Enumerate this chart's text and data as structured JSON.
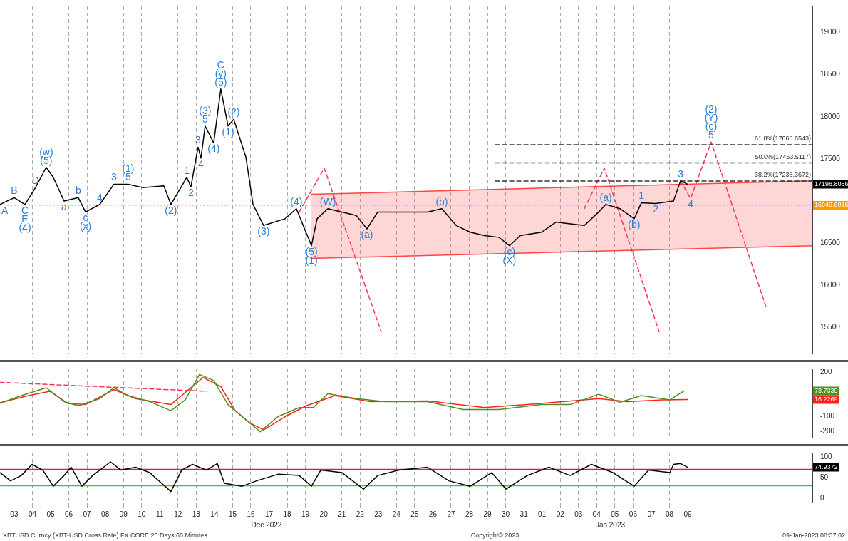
{
  "chart_data": [
    {
      "type": "line",
      "xlim": [
        "2022-12-02T17:17",
        "2023-01-16T08:24"
      ],
      "xticks": [
        "2022-12-03T12:00",
        "2022-12-04T12:00",
        "2022-12-05T12:00",
        "2022-12-06T12:00",
        "2022-12-07T12:00",
        "2022-12-08T12:00",
        "2022-12-09T12:00",
        "2022-12-10T12:00",
        "2022-12-11T12:00",
        "2022-12-12T12:00",
        "2022-12-13T12:00",
        "2022-12-14T12:00",
        "2022-12-15T12:00",
        "2022-12-16T12:00",
        "2022-12-17T12:00",
        "2022-12-18T12:00",
        "2022-12-19T12:00",
        "2022-12-20T12:00",
        "2022-12-21T12:00",
        "2022-12-22T12:00",
        "2022-12-23T12:00",
        "2022-12-24T12:00",
        "2022-12-25T12:00",
        "2022-12-26T12:00",
        "2022-12-27T12:00",
        "2022-12-28T12:00",
        "2022-12-29T12:00",
        "2022-12-30T12:00",
        "2022-12-31T12:00",
        "2023-01-01T12:00",
        "2023-01-02T12:00",
        "2023-01-03T12:00",
        "2023-01-04T12:00",
        "2023-01-05T12:00",
        "2023-01-06T12:00",
        "2023-01-07T12:00",
        "2023-01-08T12:00",
        "2023-01-09T12:00"
      ],
      "ylim": [
        15190,
        19310
      ],
      "yticks": [
        15500,
        16000,
        16500,
        17500,
        18000,
        18500,
        19000
      ],
      "tick_labels": "y",
      "grid": "x",
      "legend": false,
      "marker": "none",
      "series": [
        {
          "color": "#000000",
          "line_style": "solid",
          "x": [
            "2022-12-02T17:17",
            "2022-12-03T12:00",
            "2022-12-04T02:10",
            "2022-12-04T16:05",
            "2022-12-05T06:14",
            "2022-12-05T15:36",
            "2022-12-06T05:46",
            "2022-12-07T00:29",
            "2022-12-07T10:05",
            "2022-12-08T04:48",
            "2022-12-08T23:31",
            "2022-12-09T18:14",
            "2022-12-10T13:12",
            "2022-12-11T17:17",
            "2022-12-12T02:38",
            "2022-12-12T23:31",
            "2022-12-13T05:02",
            "2022-12-13T14:24",
            "2022-12-13T18:14",
            "2022-12-13T23:46",
            "2022-12-14T11:02",
            "2022-12-14T20:24",
            "2022-12-15T06:00",
            "2022-12-15T13:26",
            "2022-12-16T05:31",
            "2022-12-16T14:53",
            "2022-12-17T04:48",
            "2022-12-18T09:07",
            "2022-12-19T00:00",
            "2022-12-19T19:55",
            "2022-12-20T03:22",
            "2022-12-20T17:31",
            "2022-12-21T12:14",
            "2022-12-22T06:58",
            "2022-12-22T21:07",
            "2022-12-23T11:17",
            "2022-12-24T15:22",
            "2022-12-26T05:02",
            "2022-12-26T23:46",
            "2022-12-27T18:43",
            "2022-12-28T13:26",
            "2022-12-29T08:10",
            "2022-12-30T02:53",
            "2022-12-30T17:02",
            "2022-12-31T07:12",
            "2023-01-01T11:17",
            "2023-01-02T06:14",
            "2023-01-03T00:58",
            "2023-01-03T19:41",
            "2023-01-04T14:38",
            "2023-01-05T00:00",
            "2023-01-05T18:43",
            "2023-01-06T13:26",
            "2023-01-06T23:02",
            "2023-01-07T17:46",
            "2023-01-08T17:17",
            "2023-01-09T02:38",
            "2023-01-09T12:00"
          ],
          "values": [
            16960,
            17040,
            16960,
            17160,
            17400,
            17280,
            17000,
            17040,
            16870,
            16960,
            17200,
            17200,
            17160,
            17180,
            16960,
            17280,
            17170,
            17640,
            17510,
            17890,
            17690,
            18330,
            17890,
            17970,
            17520,
            16960,
            16710,
            16790,
            16910,
            16470,
            16790,
            16910,
            16870,
            16830,
            16670,
            16870,
            16870,
            16870,
            16910,
            16710,
            16630,
            16590,
            16570,
            16470,
            16590,
            16630,
            16750,
            16730,
            16710,
            16870,
            16960,
            16910,
            16790,
            16980,
            16970,
            17000,
            17240,
            17198.8086
          ]
        },
        {
          "color": "#ff4444",
          "line_style": "solid",
          "x": [
            "2022-12-19T19:55",
            "2023-01-16T08:24"
          ],
          "values": [
            null,
            null
          ],
          "lower": [
            16320,
            16470
          ],
          "upper": [
            17080,
            17240
          ]
        },
        {
          "color": "#333333",
          "line_style": "dashed",
          "x": [
            "2022-12-29T22:19",
            "2023-01-16T08:24"
          ],
          "values": [
            17238.3672,
            17238.3672
          ]
        },
        {
          "color": "#333333",
          "line_style": "dashed",
          "x": [
            "2022-12-29T22:19",
            "2023-01-16T08:24"
          ],
          "values": [
            17453.5117,
            17453.5117
          ]
        },
        {
          "color": "#333333",
          "line_style": "dashed",
          "x": [
            "2022-12-29T22:19",
            "2023-01-16T08:24"
          ],
          "values": [
            17668.6543,
            17668.6543
          ]
        },
        {
          "color": "#ff3355",
          "line_style": "dashed",
          "x": [
            "2022-12-19T03:50",
            "2022-12-20T12:43",
            "2022-12-23T15:50"
          ],
          "values": [
            16870,
            17390,
            15450
          ]
        },
        {
          "color": "#ff3355",
          "line_style": "dashed",
          "x": [
            "2023-01-03T19:41",
            "2023-01-04T22:05",
            "2023-01-07T22:19"
          ],
          "values": [
            16910,
            17390,
            15450
          ]
        },
        {
          "color": "#ff3355",
          "line_style": "dashed",
          "x": [
            "2023-01-09T02:38",
            "2023-01-09T15:50",
            "2023-01-10T18:58",
            "2023-01-13T19:26"
          ],
          "values": [
            17240,
            17030,
            17700,
            15740
          ]
        }
      ],
      "ref_lines": [
        {
          "axis": "y",
          "value": 16949.6016,
          "label": "16949.6016",
          "color": "#ff9900",
          "line_style": "dotted"
        }
      ],
      "annotations": [
        {
          "text": "A",
          "x": "2022-12-02T17:17",
          "y": 16960
        },
        {
          "text": "B",
          "x": "2022-12-03T12:00",
          "y": 17040
        },
        {
          "text": "C",
          "x": "2022-12-04T02:10",
          "y": 16960
        },
        {
          "text": "E",
          "x": "2022-12-04T02:10",
          "y": 16960
        },
        {
          "text": "(4)",
          "x": "2022-12-04T02:10",
          "y": 16960
        },
        {
          "text": "D",
          "x": "2022-12-04T16:05",
          "y": 17160
        },
        {
          "text": "(5)",
          "x": "2022-12-05T06:14",
          "y": 17400
        },
        {
          "text": "(w)",
          "x": "2022-12-05T06:14",
          "y": 17400
        },
        {
          "text": "a",
          "x": "2022-12-06T05:46",
          "y": 17000
        },
        {
          "text": "b",
          "x": "2022-12-07T00:29",
          "y": 17040
        },
        {
          "text": "c",
          "x": "2022-12-07T10:05",
          "y": 16870
        },
        {
          "text": "(x)",
          "x": "2022-12-07T10:05",
          "y": 16870
        },
        {
          "text": "4",
          "x": "2022-12-08T04:48",
          "y": 16960
        },
        {
          "text": "3",
          "x": "2022-12-08T23:31",
          "y": 17200
        },
        {
          "text": "5",
          "x": "2022-12-09T18:14",
          "y": 17200
        },
        {
          "text": "(1)",
          "x": "2022-12-09T18:14",
          "y": 17200
        },
        {
          "text": "(2)",
          "x": "2022-12-12T02:38",
          "y": 16960
        },
        {
          "text": "1",
          "x": "2022-12-12T23:31",
          "y": 17280
        },
        {
          "text": "2",
          "x": "2022-12-13T05:02",
          "y": 17170
        },
        {
          "text": "3",
          "x": "2022-12-13T14:24",
          "y": 17640
        },
        {
          "text": "4",
          "x": "2022-12-13T18:14",
          "y": 17510
        },
        {
          "text": "5",
          "x": "2022-12-13T23:46",
          "y": 17890
        },
        {
          "text": "(3)",
          "x": "2022-12-13T23:46",
          "y": 17890
        },
        {
          "text": "(4)",
          "x": "2022-12-14T11:02",
          "y": 17690
        },
        {
          "text": "(5)",
          "x": "2022-12-14T20:24",
          "y": 18330
        },
        {
          "text": "(y)",
          "x": "2022-12-14T20:24",
          "y": 18330
        },
        {
          "text": "C",
          "x": "2022-12-14T20:24",
          "y": 18330
        },
        {
          "text": "(1)",
          "x": "2022-12-15T06:00",
          "y": 17890
        },
        {
          "text": "(2)",
          "x": "2022-12-15T13:26",
          "y": 17970
        },
        {
          "text": "(3)",
          "x": "2022-12-17T04:48",
          "y": 16710
        },
        {
          "text": "(4)",
          "x": "2022-12-19T00:00",
          "y": 16910
        },
        {
          "text": "(5)",
          "x": "2022-12-19T19:55",
          "y": 16470
        },
        {
          "text": "(1)",
          "x": "2022-12-19T19:55",
          "y": 16470
        },
        {
          "text": "(W)",
          "x": "2022-12-20T17:31",
          "y": 16910
        },
        {
          "text": "(a)",
          "x": "2022-12-22T21:07",
          "y": 16670
        },
        {
          "text": "(b)",
          "x": "2022-12-26T23:46",
          "y": 16910
        },
        {
          "text": "(c)",
          "x": "2022-12-30T17:02",
          "y": 16470
        },
        {
          "text": "(X)",
          "x": "2022-12-30T17:02",
          "y": 16470
        },
        {
          "text": "(a)",
          "x": "2023-01-05T00:00",
          "y": 16960
        },
        {
          "text": "(b)",
          "x": "2023-01-06T13:26",
          "y": 16790
        },
        {
          "text": "1",
          "x": "2023-01-06T23:02",
          "y": 16980
        },
        {
          "text": "2",
          "x": "2023-01-07T17:46",
          "y": 16970
        },
        {
          "text": "3",
          "x": "2023-01-09T02:38",
          "y": 17240
        },
        {
          "text": "4",
          "x": "2023-01-09T15:50",
          "y": 17030
        },
        {
          "text": "5",
          "x": "2023-01-10T18:58",
          "y": 17700
        },
        {
          "text": "(c)",
          "x": "2023-01-10T18:58",
          "y": 17700
        },
        {
          "text": "(Y)",
          "x": "2023-01-10T18:58",
          "y": 17700
        },
        {
          "text": "(2)",
          "x": "2023-01-10T18:58",
          "y": 17700
        },
        {
          "text": "61.8%(17668.6543)",
          "x": "2023-01-16T08:24",
          "y": 17668.6543
        },
        {
          "text": "50.0%(17453.5117)",
          "x": "2023-01-16T08:24",
          "y": 17453.5117
        },
        {
          "text": "38.2%(17238.3672)",
          "x": "2023-01-16T08:24",
          "y": 17238.3672
        },
        "17198.8086"
      ]
    },
    {
      "type": "line",
      "xlim": [
        "2022-12-02T17:17",
        "2023-01-16T08:24"
      ],
      "xticks": [
        "2022-12-03T12:00",
        "2022-12-04T12:00",
        "2022-12-05T12:00",
        "2022-12-06T12:00",
        "2022-12-07T12:00",
        "2022-12-08T12:00",
        "2022-12-09T12:00",
        "2022-12-10T12:00",
        "2022-12-11T12:00",
        "2022-12-12T12:00",
        "2022-12-13T12:00",
        "2022-12-14T12:00",
        "2022-12-15T12:00",
        "2022-12-16T12:00",
        "2022-12-17T12:00",
        "2022-12-18T12:00",
        "2022-12-19T12:00",
        "2022-12-20T12:00",
        "2022-12-21T12:00",
        "2022-12-22T12:00",
        "2022-12-23T12:00",
        "2022-12-24T12:00",
        "2022-12-25T12:00",
        "2022-12-26T12:00",
        "2022-12-27T12:00",
        "2022-12-28T12:00",
        "2022-12-29T12:00",
        "2022-12-30T12:00",
        "2022-12-31T12:00",
        "2023-01-01T12:00",
        "2023-01-02T12:00",
        "2023-01-03T12:00",
        "2023-01-04T12:00",
        "2023-01-05T12:00",
        "2023-01-06T12:00",
        "2023-01-07T12:00",
        "2023-01-08T12:00",
        "2023-01-09T12:00"
      ],
      "ylim": [
        -240,
        224
      ],
      "yticks": [
        -200,
        -100,
        200
      ],
      "tick_labels": "y",
      "grid": "x",
      "legend": false,
      "marker": "none",
      "series": [
        {
          "color": "#4f8f1a",
          "line_style": "solid",
          "x": [
            "2022-12-02T17:17",
            "2022-12-03T21:22",
            "2022-12-05T06:14",
            "2022-12-06T05:46",
            "2022-12-07T00:29",
            "2022-12-08T04:48",
            "2022-12-08T23:31",
            "2022-12-09T18:14",
            "2022-12-10T22:34",
            "2022-12-12T02:38",
            "2022-12-12T21:36",
            "2022-12-13T16:19",
            "2022-12-14T11:02",
            "2022-12-15T06:00",
            "2022-12-16T00:43",
            "2022-12-17T00:14",
            "2022-12-17T23:46",
            "2022-12-19T03:50",
            "2022-12-19T22:34",
            "2022-12-20T17:31",
            "2022-12-22T06:58",
            "2022-12-23T20:38",
            "2022-12-26T05:02",
            "2022-12-28T04:05",
            "2022-12-30T02:53",
            "2023-01-01T11:17",
            "2023-01-03T00:58",
            "2023-01-04T14:38",
            "2023-01-05T18:43",
            "2023-01-06T23:02",
            "2023-01-08T12:29",
            "2023-01-09T07:12"
          ],
          "values": [
            -10,
            42,
            95,
            2,
            -26,
            22,
            95,
            42,
            2,
            -59,
            14,
            184,
            143,
            -18,
            -99,
            -200,
            -99,
            -38,
            -38,
            55,
            22,
            2,
            2,
            -51,
            -51,
            -18,
            -18,
            51,
            -2,
            42,
            14,
            73.7339
          ]
        },
        {
          "color": "#ff2020",
          "line_style": "solid",
          "x": [
            "2022-12-02T17:17",
            "2022-12-04T06:43",
            "2022-12-05T11:02",
            "2022-12-06T10:34",
            "2022-12-07T10:05",
            "2022-12-08T23:31",
            "2022-12-10T03:50",
            "2022-12-12T02:38",
            "2022-12-13T21:07",
            "2022-12-14T20:24",
            "2022-12-15T15:22",
            "2022-12-16T10:05",
            "2022-12-17T04:48",
            "2022-12-18T09:07",
            "2022-12-19T13:12",
            "2022-12-21T02:53",
            "2022-12-23T01:55",
            "2022-12-26T05:02",
            "2022-12-29T08:10",
            "2023-01-01T11:17",
            "2023-01-04T14:38",
            "2023-01-06T04:05",
            "2023-01-08T03:07",
            "2023-01-09T12:00"
          ],
          "values": [
            -6,
            42,
            71,
            -10,
            -18,
            83,
            22,
            -18,
            164,
            103,
            -59,
            -139,
            -188,
            -99,
            -26,
            42,
            2,
            6,
            -38,
            -10,
            22,
            2,
            14,
            16.2269
          ]
        },
        {
          "color": "#ff3355",
          "line_style": "dashed",
          "x": [
            "2022-12-02T17:17",
            "2022-12-14T01:41"
          ],
          "values": [
            131,
            71
          ]
        }
      ],
      "annotations": [
        "73.7339",
        "16.2269"
      ]
    },
    {
      "type": "line",
      "xlim": [
        "2022-12-02T17:17",
        "2023-01-16T08:24"
      ],
      "xticks": [
        {
          "value": "2022-12-03T12:00",
          "label": "03"
        },
        {
          "value": "2022-12-04T12:00",
          "label": "04"
        },
        {
          "value": "2022-12-05T12:00",
          "label": "05"
        },
        {
          "value": "2022-12-06T12:00",
          "label": "06"
        },
        {
          "value": "2022-12-07T12:00",
          "label": "07"
        },
        {
          "value": "2022-12-08T12:00",
          "label": "08"
        },
        {
          "value": "2022-12-09T12:00",
          "label": "09"
        },
        {
          "value": "2022-12-10T12:00",
          "label": "10"
        },
        {
          "value": "2022-12-11T12:00",
          "label": "11"
        },
        {
          "value": "2022-12-12T12:00",
          "label": "12"
        },
        {
          "value": "2022-12-13T12:00",
          "label": "13"
        },
        {
          "value": "2022-12-14T12:00",
          "label": "14"
        },
        {
          "value": "2022-12-15T12:00",
          "label": "15"
        },
        {
          "value": "2022-12-16T12:00",
          "label": "16"
        },
        {
          "value": "2022-12-17T12:00",
          "label": "17"
        },
        {
          "value": "2022-12-18T12:00",
          "label": "18"
        },
        {
          "value": "2022-12-19T12:00",
          "label": "19"
        },
        {
          "value": "2022-12-20T12:00",
          "label": "20"
        },
        {
          "value": "2022-12-21T12:00",
          "label": "21"
        },
        {
          "value": "2022-12-22T12:00",
          "label": "22"
        },
        {
          "value": "2022-12-23T12:00",
          "label": "23"
        },
        {
          "value": "2022-12-24T12:00",
          "label": "24"
        },
        {
          "value": "2022-12-25T12:00",
          "label": "25"
        },
        {
          "value": "2022-12-26T12:00",
          "label": "26"
        },
        {
          "value": "2022-12-27T12:00",
          "label": "27"
        },
        {
          "value": "2022-12-28T12:00",
          "label": "28"
        },
        {
          "value": "2022-12-29T12:00",
          "label": "29"
        },
        {
          "value": "2022-12-30T12:00",
          "label": "30"
        },
        {
          "value": "2022-12-31T12:00",
          "label": "31"
        },
        {
          "value": "2023-01-01T12:00",
          "label": "01"
        },
        {
          "value": "2023-01-02T12:00",
          "label": "02"
        },
        {
          "value": "2023-01-03T12:00",
          "label": "03"
        },
        {
          "value": "2023-01-04T12:00",
          "label": "04"
        },
        {
          "value": "2023-01-05T12:00",
          "label": "05"
        },
        {
          "value": "2023-01-06T12:00",
          "label": "06"
        },
        {
          "value": "2023-01-07T12:00",
          "label": "07"
        },
        {
          "value": "2023-01-08T12:00",
          "label": "08"
        },
        {
          "value": "2023-01-09T12:00",
          "label": "09"
        }
      ],
      "ylim": [
        -10.5,
        110.5
      ],
      "yticks": [
        0,
        50,
        100
      ],
      "grid": "x",
      "legend": false,
      "marker": "none",
      "series": [
        {
          "color": "#000000",
          "line_style": "solid",
          "x": [
            "2022-12-02T17:17",
            "2022-12-03T07:12",
            "2022-12-03T21:22",
            "2022-12-04T11:31",
            "2022-12-05T01:41",
            "2022-12-05T15:36",
            "2022-12-06T05:46",
            "2022-12-06T15:07",
            "2022-12-07T05:17",
            "2022-12-07T19:26",
            "2022-12-08T18:58",
            "2022-12-09T08:53",
            "2022-12-10T03:50",
            "2022-12-10T22:34",
            "2022-12-12T02:38",
            "2022-12-12T16:48",
            "2022-12-13T06:58",
            "2022-12-14T01:41",
            "2022-12-14T15:50",
            "2022-12-15T01:12",
            "2022-12-16T00:43",
            "2022-12-16T19:26",
            "2022-12-17T23:46",
            "2022-12-19T03:50",
            "2022-12-19T19:55",
            "2022-12-20T08:10",
            "2022-12-21T12:14",
            "2022-12-22T16:34",
            "2022-12-23T11:17",
            "2022-12-24T15:22",
            "2022-12-26T05:02",
            "2022-12-27T09:07",
            "2022-12-28T13:26",
            "2022-12-29T17:31",
            "2022-12-30T12:29",
            "2022-12-31T16:34",
            "2023-01-01T20:53",
            "2023-01-03T00:58",
            "2023-01-04T05:02",
            "2023-01-05T09:22",
            "2023-01-06T13:26",
            "2023-01-07T08:24",
            "2023-01-08T12:29",
            "2023-01-08T17:17",
            "2023-01-09T02:38",
            "2023-01-09T12:00"
          ],
          "values": [
            62,
            42,
            55,
            82,
            68,
            29,
            55,
            75,
            29,
            55,
            88,
            68,
            75,
            62,
            16,
            68,
            82,
            68,
            84,
            36,
            29,
            42,
            58,
            55,
            29,
            68,
            62,
            22,
            55,
            68,
            75,
            42,
            29,
            62,
            22,
            55,
            75,
            55,
            82,
            62,
            29,
            68,
            62,
            82,
            84,
            74.9372
          ]
        }
      ],
      "ref_lines": [
        {
          "axis": "y",
          "value": 70,
          "color": "#dd2222",
          "line_style": "solid"
        },
        {
          "axis": "y",
          "value": 30,
          "color": "#33cc33",
          "line_style": "solid"
        }
      ],
      "annotations": [
        "74.9372",
        "Dec 2022",
        "Jan 2023",
        "XBTUSD Curncy (XBT-USD Cross Rate) FX CORE 20 Days 60 Minutes",
        "Copyright© 2023",
        "09-Jan-2023 08:37:02"
      ]
    }
  ]
}
